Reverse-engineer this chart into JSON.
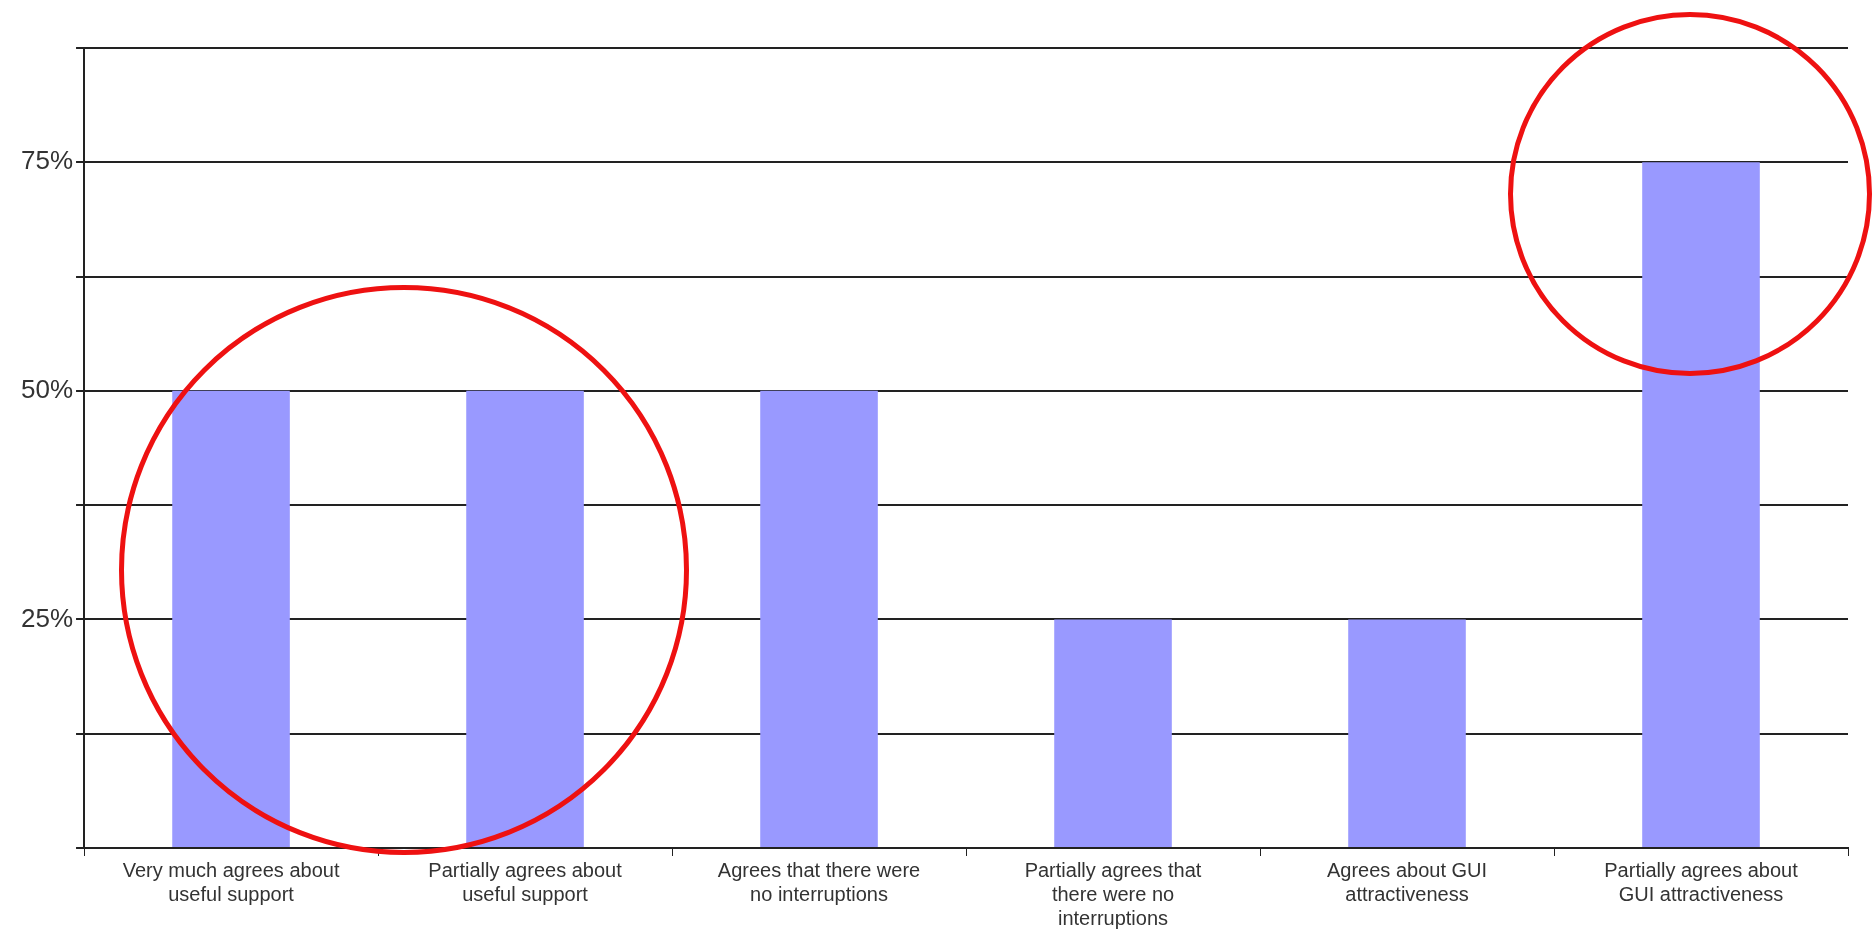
{
  "chart_data": {
    "type": "bar",
    "categories": [
      "Very much agrees about useful support",
      "Partially agrees about useful support",
      "Agrees that there were no interruptions",
      "Partially agrees that there were no interruptions",
      "Agrees about GUI attractiveness",
      "Partially agrees about GUI attractiveness"
    ],
    "values": [
      50,
      50,
      50,
      25,
      25,
      75
    ],
    "color": "#9999ff",
    "ylim": [
      0,
      87.5
    ],
    "yticks": [
      {
        "value": 0,
        "label": null
      },
      {
        "value": 12.5,
        "label": null
      },
      {
        "value": 25,
        "label": "25%"
      },
      {
        "value": 37.5,
        "label": null
      },
      {
        "value": 50,
        "label": "50%"
      },
      {
        "value": 62.5,
        "label": null
      },
      {
        "value": 75,
        "label": "75%"
      },
      {
        "value": 87.5,
        "label": null
      }
    ],
    "grid": "y",
    "legend": false
  }
}
